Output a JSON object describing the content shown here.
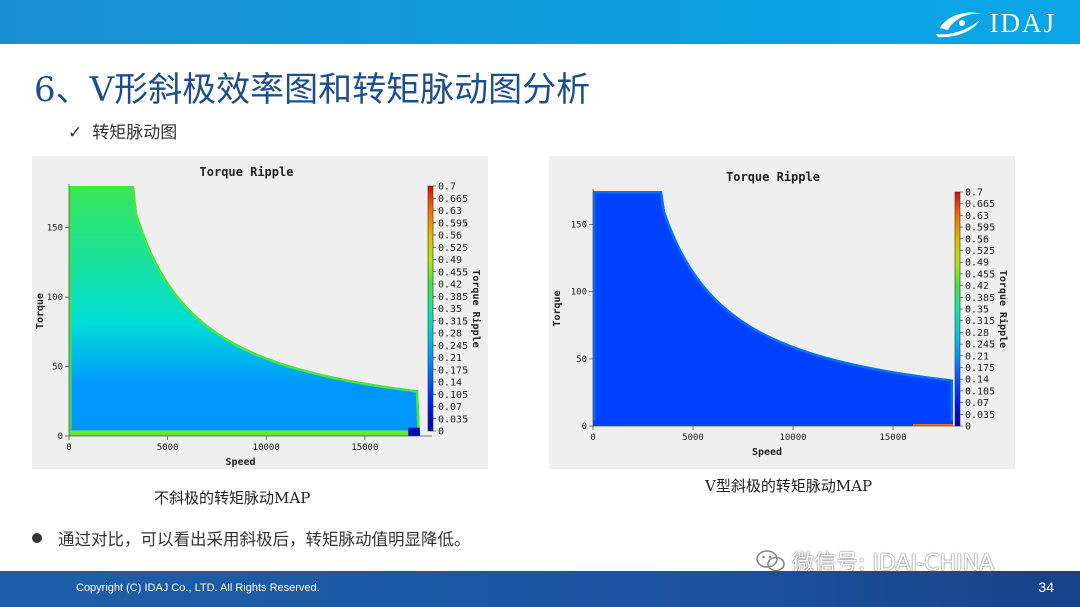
{
  "header": {
    "logo_text": "IDAJ",
    "title": "6、V形斜极效率图和转矩脉动图分析",
    "subtitle_check": "✓",
    "subtitle": "转矩脉动图"
  },
  "colors": {
    "header_bar": "#0e9ee0",
    "title": "#1f4e8c",
    "footer_bar": "#1b54a0"
  },
  "charts": [
    {
      "caption": "不斜极的转矩脉动MAP"
    },
    {
      "caption": "V型斜极的转矩脉动MAP"
    }
  ],
  "chart_data": [
    {
      "type": "heatmap",
      "title": "Torque Ripple",
      "xlabel": "Speed",
      "ylabel": "Torque",
      "colorbar_label": "Torque Ripple",
      "xlim": [
        0,
        18000
      ],
      "ylim": [
        0,
        180
      ],
      "x_ticks": [
        "0",
        "5000",
        "10000",
        "15000"
      ],
      "y_ticks": [
        "0",
        "50",
        "100",
        "150"
      ],
      "colorbar_range": [
        0,
        0.7
      ],
      "colorbar_ticks": [
        "0.7",
        "0.665",
        "0.63",
        "0.595",
        "0.56",
        "0.525",
        "0.49",
        "0.455",
        "0.42",
        "0.385",
        "0.35",
        "0.315",
        "0.28",
        "0.245",
        "0.21",
        "0.175",
        "0.14",
        "0.105",
        "0.07",
        "0.035",
        "0"
      ],
      "envelope": {
        "max_torque": 180,
        "corner_speed": 3300,
        "max_speed": 17800,
        "torque_at_max_speed": 8
      },
      "ripple_levels": {
        "low_speed_high_torque": 0.4,
        "mid_region": 0.21,
        "boundary_edge": 0.42,
        "low_torque_band": 0.45
      }
    },
    {
      "type": "heatmap",
      "title": "Torque Ripple",
      "xlabel": "Speed",
      "ylabel": "Torque",
      "colorbar_label": "Torque Ripple",
      "xlim": [
        0,
        18000
      ],
      "ylim": [
        0,
        175
      ],
      "x_ticks": [
        "0",
        "5000",
        "10000",
        "15000"
      ],
      "y_ticks": [
        "0",
        "50",
        "100",
        "150"
      ],
      "colorbar_range": [
        0,
        0.7
      ],
      "colorbar_ticks": [
        "0.7",
        "0.665",
        "0.63",
        "0.595",
        "0.56",
        "0.525",
        "0.49",
        "0.455",
        "0.42",
        "0.385",
        "0.35",
        "0.315",
        "0.28",
        "0.245",
        "0.21",
        "0.175",
        "0.14",
        "0.105",
        "0.07",
        "0.035",
        "0"
      ],
      "envelope": {
        "max_torque": 175,
        "corner_speed": 3500,
        "max_speed": 18000,
        "torque_at_max_speed": 13
      },
      "ripple_levels": {
        "low_speed_high_torque": 0.12,
        "mid_region": 0.12,
        "boundary_edge": 0.17,
        "low_torque_band": 0.12
      }
    }
  ],
  "bullet": "通过对比，可以看出采用斜极后，转矩脉动值明显降低。",
  "watermark": "微信号: IDAJ-CHINA",
  "footer": {
    "copyright": "Copyright (C)  IDAJ Co., LTD. All Rights Reserved.",
    "page": "34"
  }
}
